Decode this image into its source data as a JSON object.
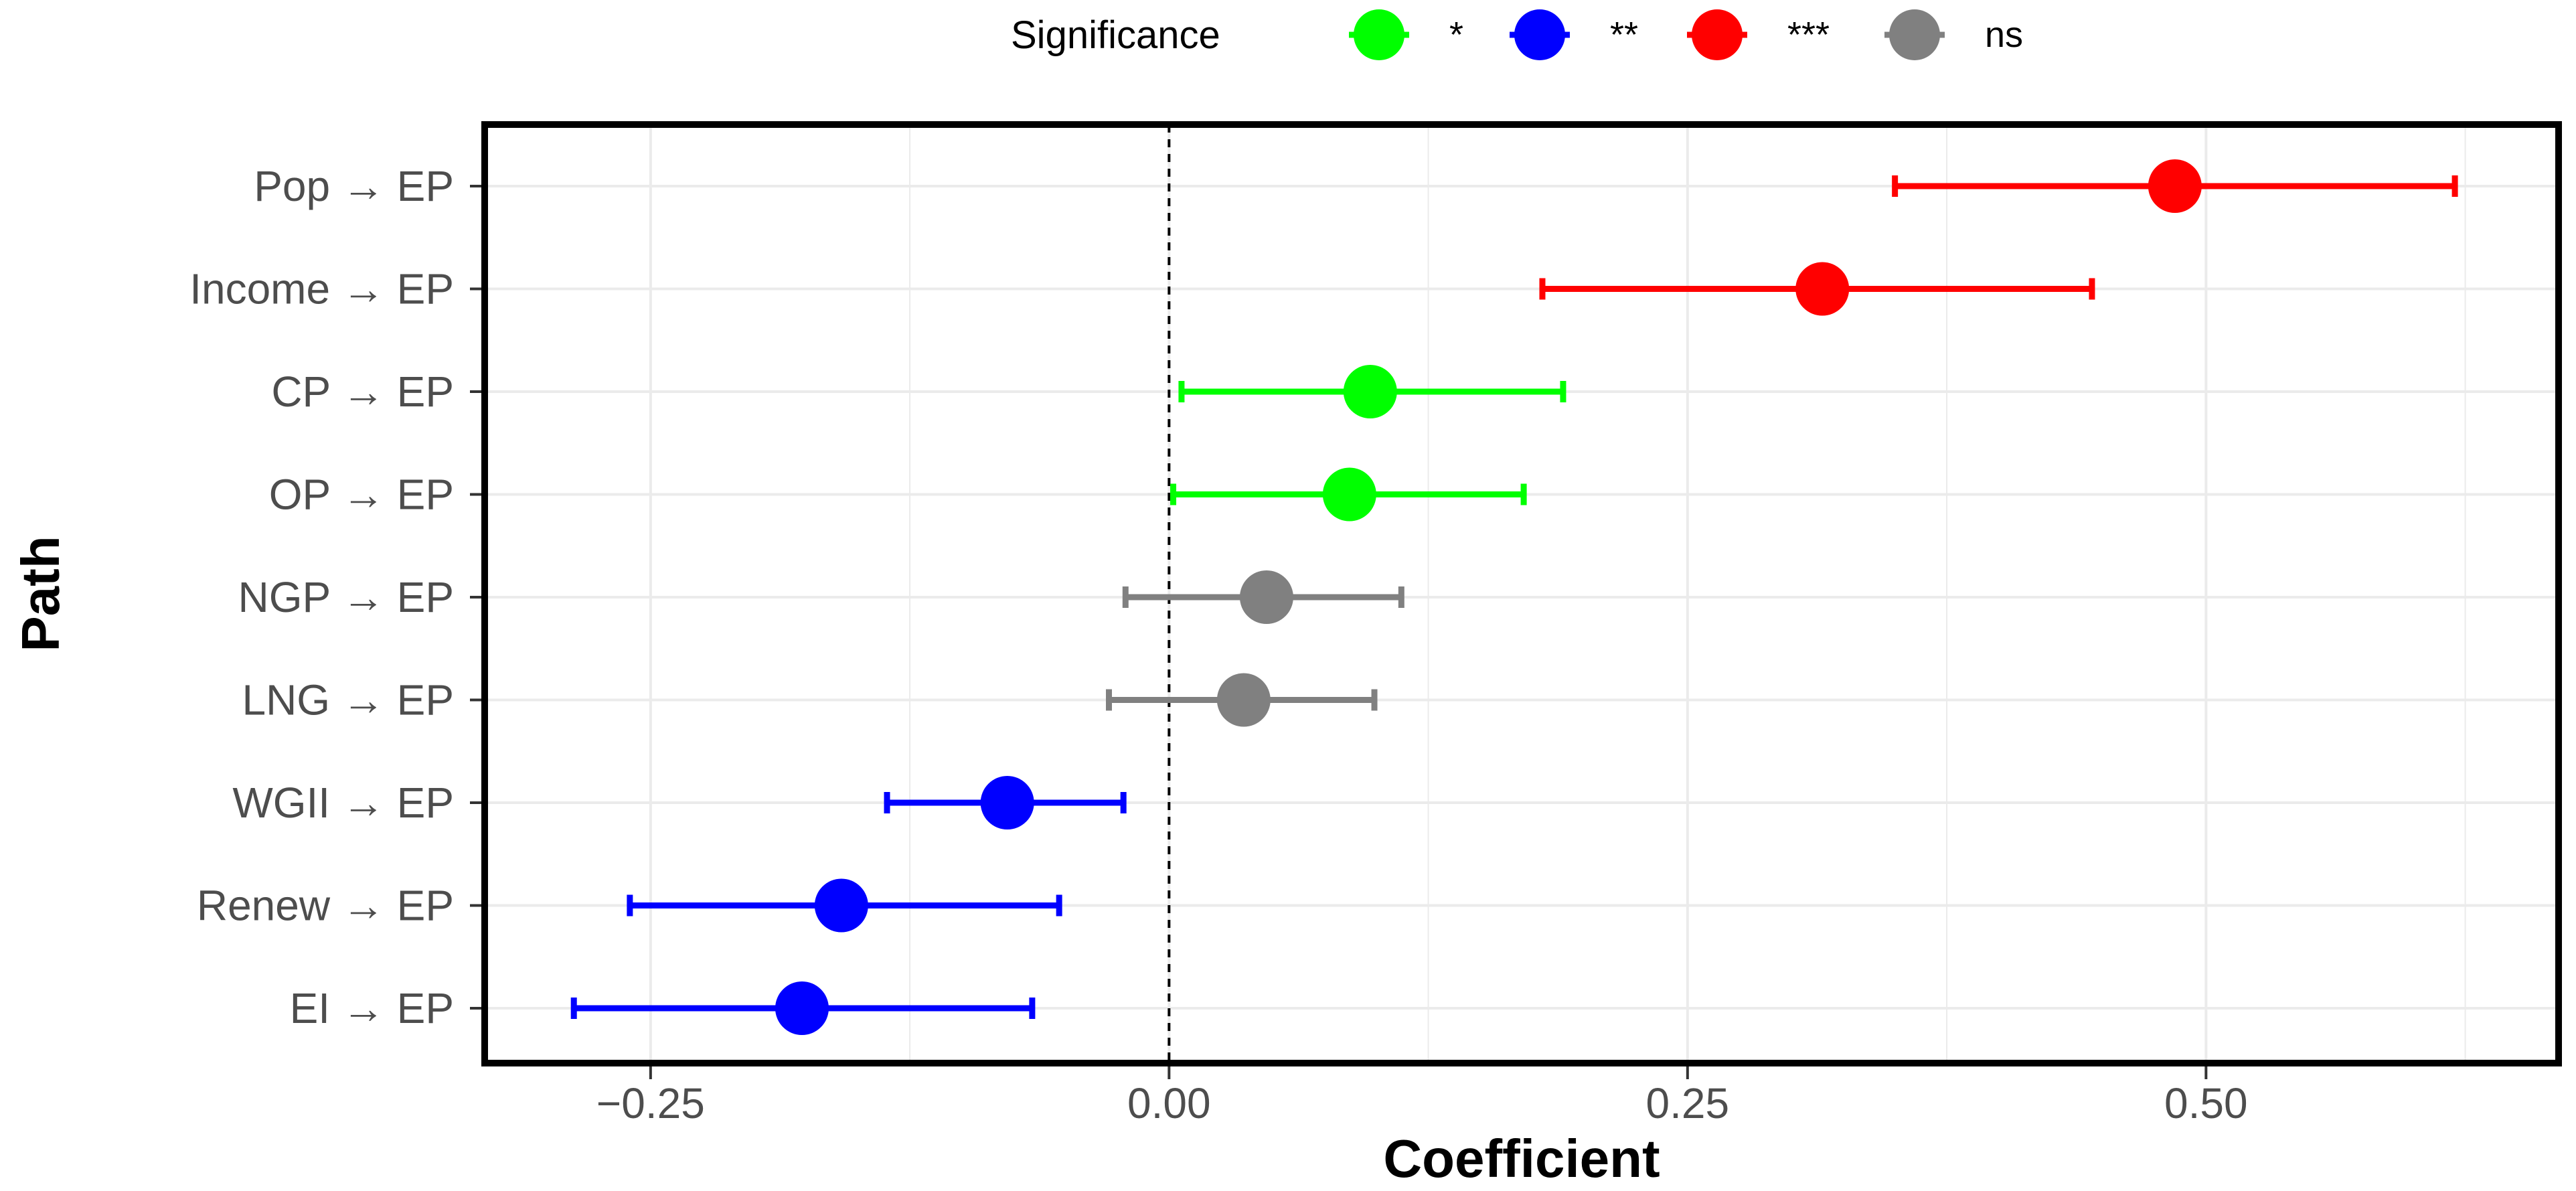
{
  "chart_data": {
    "type": "forest",
    "title": "",
    "xlabel": "Coefficient",
    "ylabel": "Path",
    "xlim": [
      -0.33,
      0.67
    ],
    "xticks": [
      -0.25,
      0.0,
      0.25,
      0.5
    ],
    "xtick_labels": [
      "−0.25",
      "0.00",
      "0.25",
      "0.50"
    ],
    "reference_line": 0,
    "grid": true,
    "legend": {
      "title": "Significance",
      "position": "top",
      "entries": [
        {
          "label": "*",
          "color": "#00ff00"
        },
        {
          "label": "**",
          "color": "#0000ff"
        },
        {
          "label": "***",
          "color": "#ff0000"
        },
        {
          "label": "ns",
          "color": "#808080"
        }
      ]
    },
    "rows": [
      {
        "path": "Pop → EP",
        "coef": 0.485,
        "lower": 0.35,
        "upper": 0.62,
        "significance": "***"
      },
      {
        "path": "Income → EP",
        "coef": 0.315,
        "lower": 0.18,
        "upper": 0.445,
        "significance": "***"
      },
      {
        "path": "CP → EP",
        "coef": 0.097,
        "lower": 0.006,
        "upper": 0.19,
        "significance": "*"
      },
      {
        "path": "OP → EP",
        "coef": 0.087,
        "lower": 0.002,
        "upper": 0.171,
        "significance": "*"
      },
      {
        "path": "NGP → EP",
        "coef": 0.047,
        "lower": -0.021,
        "upper": 0.112,
        "significance": "ns"
      },
      {
        "path": "LNG → EP",
        "coef": 0.036,
        "lower": -0.029,
        "upper": 0.099,
        "significance": "ns"
      },
      {
        "path": "WGII → EP",
        "coef": -0.078,
        "lower": -0.136,
        "upper": -0.022,
        "significance": "**"
      },
      {
        "path": "Renew → EP",
        "coef": -0.158,
        "lower": -0.26,
        "upper": -0.053,
        "significance": "**"
      },
      {
        "path": "EI → EP",
        "coef": -0.177,
        "lower": -0.287,
        "upper": -0.066,
        "significance": "**"
      }
    ]
  }
}
